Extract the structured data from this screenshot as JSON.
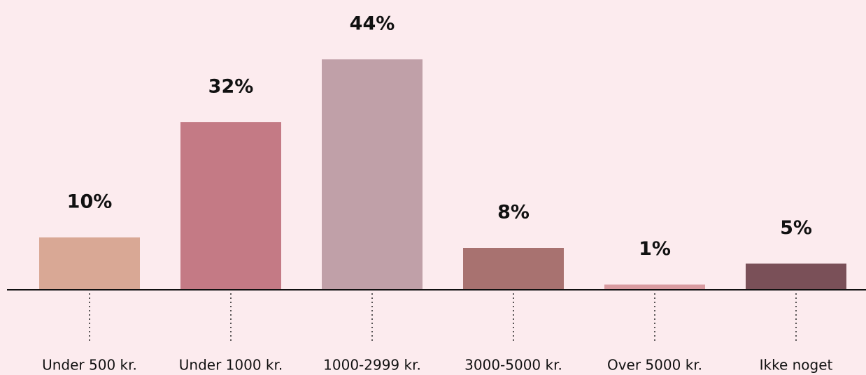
{
  "chart_data": {
    "type": "bar",
    "categories": [
      "Under 500 kr.",
      "Under 1000 kr.",
      "1000-2999 kr.",
      "3000-5000 kr.",
      "Over 5000 kr.",
      "Ikke noget"
    ],
    "values": [
      10,
      32,
      44,
      8,
      1,
      5
    ],
    "value_labels": [
      "10%",
      "32%",
      "44%",
      "8%",
      "1%",
      "5%"
    ],
    "colors": [
      "#d9a895",
      "#c47a85",
      "#c0a0a8",
      "#a87270",
      "#d99ba0",
      "#7a5058"
    ]
  }
}
